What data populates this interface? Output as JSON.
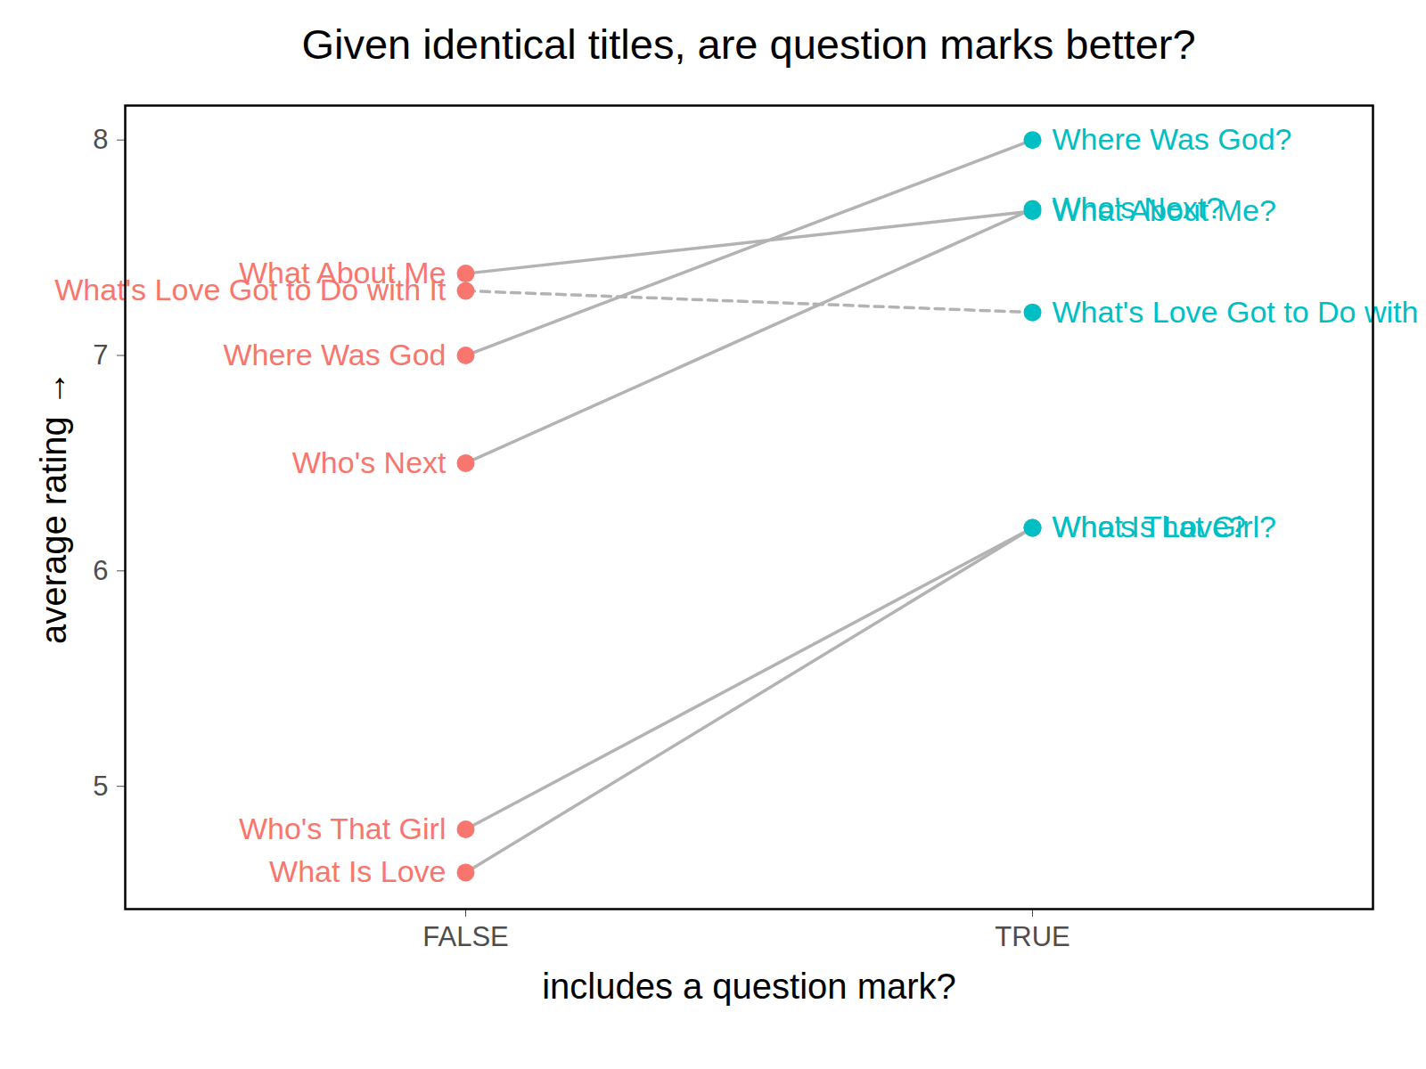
{
  "chart_data": {
    "type": "line",
    "title": "Given identical titles, are question marks better?",
    "x_label": "includes a question mark?",
    "y_label": "average rating",
    "categories": [
      "FALSE",
      "TRUE"
    ],
    "colors": [
      "#F8766D",
      "#00BFC4"
    ],
    "color": "#b3b3b3",
    "ylim": [
      4.43,
      8.16
    ],
    "yticks": [
      5,
      6,
      7,
      8
    ],
    "grid": false,
    "marker": "circle",
    "series": [
      {
        "labels": [
          "What About Me",
          "What About Me?"
        ],
        "values": [
          7.38,
          7.67
        ],
        "line_style": "solid"
      },
      {
        "labels": [
          "What's Love Got to Do with It",
          "What's Love Got to Do with It?"
        ],
        "values": [
          7.3,
          7.2
        ],
        "line_style": "dashed"
      },
      {
        "labels": [
          "Where Was God",
          "Where Was God?"
        ],
        "values": [
          7.0,
          8.0
        ],
        "line_style": "solid"
      },
      {
        "labels": [
          "Who's Next",
          "Who's Next?"
        ],
        "values": [
          6.5,
          7.68
        ],
        "line_style": "solid"
      },
      {
        "labels": [
          "Who's That Girl",
          "Who's That Girl?"
        ],
        "values": [
          4.8,
          6.2
        ],
        "line_style": "solid"
      },
      {
        "labels": [
          "What Is Love",
          "What Is Love?"
        ],
        "values": [
          4.6,
          6.2
        ],
        "line_style": "solid"
      }
    ]
  }
}
